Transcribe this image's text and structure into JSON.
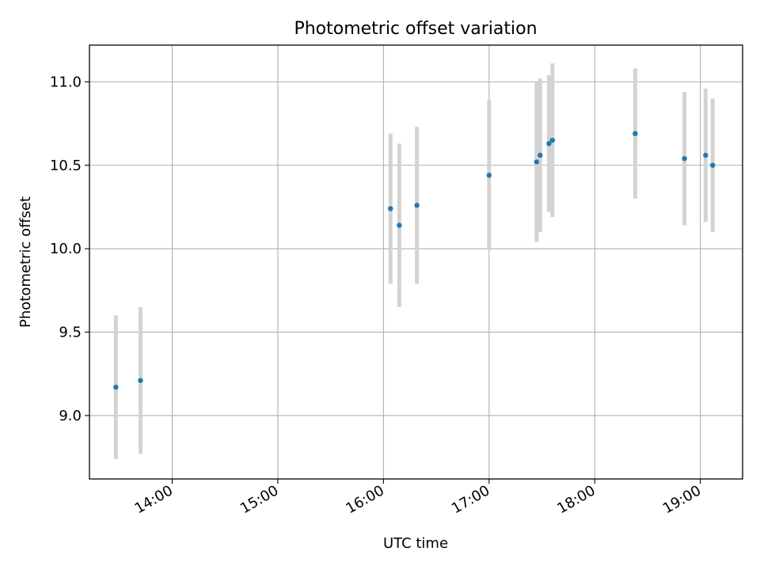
{
  "chart_data": {
    "type": "scatter",
    "title": "Photometric offset variation",
    "xlabel": "UTC time",
    "ylabel": "Photometric offset",
    "x_ticks": [
      "14:00",
      "15:00",
      "16:00",
      "17:00",
      "18:00",
      "19:00"
    ],
    "y_ticks": [
      "9.0",
      "9.5",
      "10.0",
      "10.5",
      "11.0"
    ],
    "xlim": [
      "13:13",
      "19:24"
    ],
    "ylim": [
      8.62,
      11.22
    ],
    "grid": true,
    "colors": {
      "point": "#1f77b4",
      "errorbar": "#d3d3d3",
      "grid": "#b0b0b0"
    },
    "series": [
      {
        "points": [
          {
            "x": "13:28",
            "y": 9.17,
            "err": 0.43
          },
          {
            "x": "13:42",
            "y": 9.21,
            "err": 0.44
          },
          {
            "x": "16:04",
            "y": 10.24,
            "err": 0.45
          },
          {
            "x": "16:09",
            "y": 10.14,
            "err": 0.49
          },
          {
            "x": "16:19",
            "y": 10.26,
            "err": 0.47
          },
          {
            "x": "17:00",
            "y": 10.44,
            "err": 0.45
          },
          {
            "x": "17:27",
            "y": 10.52,
            "err": 0.48
          },
          {
            "x": "17:29",
            "y": 10.56,
            "err": 0.46
          },
          {
            "x": "17:34",
            "y": 10.63,
            "err": 0.41
          },
          {
            "x": "17:36",
            "y": 10.65,
            "err": 0.46
          },
          {
            "x": "18:23",
            "y": 10.69,
            "err": 0.39
          },
          {
            "x": "18:51",
            "y": 10.54,
            "err": 0.4
          },
          {
            "x": "19:03",
            "y": 10.56,
            "err": 0.4
          },
          {
            "x": "19:07",
            "y": 10.5,
            "err": 0.4
          }
        ]
      }
    ]
  }
}
